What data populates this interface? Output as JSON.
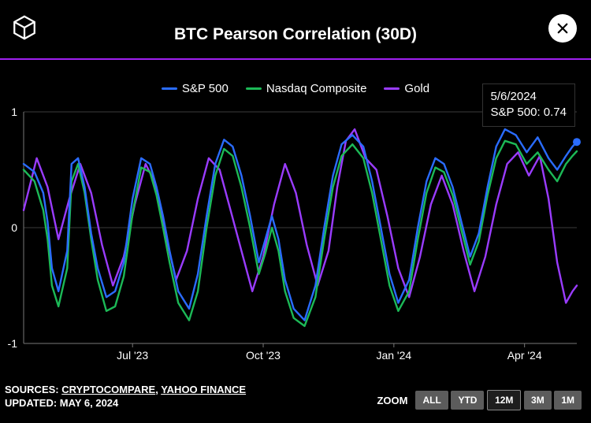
{
  "title": "BTC Pearson Correlation (30D)",
  "colors": {
    "background": "#000000",
    "text": "#ffffff",
    "accent_rule": "#a020f0",
    "grid": "#777777"
  },
  "legend": [
    {
      "label": "S&P 500",
      "color": "#2a6cff"
    },
    {
      "label": "Nasdaq Composite",
      "color": "#1cb957"
    },
    {
      "label": "Gold",
      "color": "#9a3cff"
    }
  ],
  "tooltip": {
    "date": "5/6/2024",
    "series_label": "S&P 500",
    "value_text": "0.74"
  },
  "chart": {
    "type": "line",
    "ylim": [
      -1,
      1
    ],
    "yticks": [
      -1,
      0,
      1
    ],
    "x_domain_t": [
      0,
      12.7
    ],
    "x_ticks": [
      {
        "t": 2.5,
        "label": "Jul '23"
      },
      {
        "t": 5.5,
        "label": "Oct '23"
      },
      {
        "t": 8.5,
        "label": "Jan '24"
      },
      {
        "t": 11.5,
        "label": "Apr '24"
      }
    ],
    "line_width": 2.4,
    "marker": {
      "t": 12.7,
      "v": 0.74,
      "color": "#2a6cff",
      "radius": 5
    },
    "series": {
      "sp500": {
        "color": "#2a6cff",
        "points": [
          [
            0.0,
            0.55
          ],
          [
            0.25,
            0.48
          ],
          [
            0.45,
            0.3
          ],
          [
            0.55,
            0.05
          ],
          [
            0.65,
            -0.35
          ],
          [
            0.8,
            -0.55
          ],
          [
            1.0,
            -0.2
          ],
          [
            1.1,
            0.55
          ],
          [
            1.25,
            0.6
          ],
          [
            1.4,
            0.35
          ],
          [
            1.55,
            -0.05
          ],
          [
            1.7,
            -0.35
          ],
          [
            1.9,
            -0.6
          ],
          [
            2.1,
            -0.55
          ],
          [
            2.3,
            -0.3
          ],
          [
            2.5,
            0.25
          ],
          [
            2.7,
            0.6
          ],
          [
            2.9,
            0.55
          ],
          [
            3.05,
            0.35
          ],
          [
            3.2,
            0.1
          ],
          [
            3.35,
            -0.2
          ],
          [
            3.55,
            -0.55
          ],
          [
            3.8,
            -0.7
          ],
          [
            4.0,
            -0.4
          ],
          [
            4.2,
            0.1
          ],
          [
            4.4,
            0.55
          ],
          [
            4.6,
            0.76
          ],
          [
            4.8,
            0.7
          ],
          [
            5.0,
            0.45
          ],
          [
            5.2,
            0.1
          ],
          [
            5.4,
            -0.3
          ],
          [
            5.55,
            -0.1
          ],
          [
            5.7,
            0.1
          ],
          [
            5.85,
            -0.1
          ],
          [
            6.0,
            -0.45
          ],
          [
            6.2,
            -0.7
          ],
          [
            6.45,
            -0.8
          ],
          [
            6.7,
            -0.5
          ],
          [
            6.9,
            0.0
          ],
          [
            7.1,
            0.45
          ],
          [
            7.3,
            0.72
          ],
          [
            7.55,
            0.8
          ],
          [
            7.8,
            0.7
          ],
          [
            8.0,
            0.4
          ],
          [
            8.2,
            0.0
          ],
          [
            8.4,
            -0.4
          ],
          [
            8.6,
            -0.65
          ],
          [
            8.85,
            -0.45
          ],
          [
            9.05,
            0.0
          ],
          [
            9.25,
            0.4
          ],
          [
            9.45,
            0.6
          ],
          [
            9.65,
            0.55
          ],
          [
            9.85,
            0.35
          ],
          [
            10.05,
            0.05
          ],
          [
            10.25,
            -0.25
          ],
          [
            10.45,
            -0.05
          ],
          [
            10.65,
            0.35
          ],
          [
            10.85,
            0.7
          ],
          [
            11.05,
            0.85
          ],
          [
            11.3,
            0.8
          ],
          [
            11.55,
            0.65
          ],
          [
            11.8,
            0.78
          ],
          [
            12.05,
            0.6
          ],
          [
            12.25,
            0.5
          ],
          [
            12.45,
            0.62
          ],
          [
            12.6,
            0.7
          ],
          [
            12.7,
            0.74
          ]
        ]
      },
      "nasdaq": {
        "color": "#1cb957",
        "points": [
          [
            0.0,
            0.5
          ],
          [
            0.25,
            0.4
          ],
          [
            0.45,
            0.15
          ],
          [
            0.55,
            -0.1
          ],
          [
            0.65,
            -0.5
          ],
          [
            0.8,
            -0.68
          ],
          [
            1.0,
            -0.35
          ],
          [
            1.1,
            0.4
          ],
          [
            1.25,
            0.55
          ],
          [
            1.4,
            0.3
          ],
          [
            1.55,
            -0.1
          ],
          [
            1.7,
            -0.45
          ],
          [
            1.9,
            -0.72
          ],
          [
            2.1,
            -0.68
          ],
          [
            2.3,
            -0.42
          ],
          [
            2.5,
            0.12
          ],
          [
            2.7,
            0.52
          ],
          [
            2.9,
            0.48
          ],
          [
            3.05,
            0.28
          ],
          [
            3.2,
            0.0
          ],
          [
            3.35,
            -0.3
          ],
          [
            3.55,
            -0.65
          ],
          [
            3.8,
            -0.8
          ],
          [
            4.0,
            -0.55
          ],
          [
            4.2,
            0.0
          ],
          [
            4.4,
            0.45
          ],
          [
            4.6,
            0.68
          ],
          [
            4.8,
            0.62
          ],
          [
            5.0,
            0.35
          ],
          [
            5.2,
            0.0
          ],
          [
            5.4,
            -0.4
          ],
          [
            5.55,
            -0.22
          ],
          [
            5.7,
            0.0
          ],
          [
            5.85,
            -0.2
          ],
          [
            6.0,
            -0.55
          ],
          [
            6.2,
            -0.78
          ],
          [
            6.45,
            -0.85
          ],
          [
            6.7,
            -0.6
          ],
          [
            6.9,
            -0.1
          ],
          [
            7.1,
            0.35
          ],
          [
            7.3,
            0.62
          ],
          [
            7.55,
            0.72
          ],
          [
            7.8,
            0.6
          ],
          [
            8.0,
            0.3
          ],
          [
            8.2,
            -0.1
          ],
          [
            8.4,
            -0.5
          ],
          [
            8.6,
            -0.72
          ],
          [
            8.85,
            -0.55
          ],
          [
            9.05,
            -0.1
          ],
          [
            9.25,
            0.3
          ],
          [
            9.45,
            0.52
          ],
          [
            9.65,
            0.48
          ],
          [
            9.85,
            0.28
          ],
          [
            10.05,
            -0.02
          ],
          [
            10.25,
            -0.32
          ],
          [
            10.45,
            -0.12
          ],
          [
            10.65,
            0.28
          ],
          [
            10.85,
            0.6
          ],
          [
            11.05,
            0.75
          ],
          [
            11.3,
            0.72
          ],
          [
            11.55,
            0.55
          ],
          [
            11.8,
            0.65
          ],
          [
            12.05,
            0.5
          ],
          [
            12.25,
            0.4
          ],
          [
            12.45,
            0.55
          ],
          [
            12.6,
            0.62
          ],
          [
            12.7,
            0.66
          ]
        ]
      },
      "gold": {
        "color": "#9a3cff",
        "points": [
          [
            0.0,
            0.15
          ],
          [
            0.3,
            0.6
          ],
          [
            0.55,
            0.35
          ],
          [
            0.8,
            -0.1
          ],
          [
            1.05,
            0.25
          ],
          [
            1.3,
            0.55
          ],
          [
            1.55,
            0.3
          ],
          [
            1.8,
            -0.15
          ],
          [
            2.05,
            -0.5
          ],
          [
            2.3,
            -0.25
          ],
          [
            2.55,
            0.2
          ],
          [
            2.8,
            0.55
          ],
          [
            3.0,
            0.4
          ],
          [
            3.25,
            -0.05
          ],
          [
            3.5,
            -0.45
          ],
          [
            3.75,
            -0.2
          ],
          [
            4.0,
            0.25
          ],
          [
            4.25,
            0.6
          ],
          [
            4.5,
            0.5
          ],
          [
            4.75,
            0.15
          ],
          [
            5.0,
            -0.2
          ],
          [
            5.25,
            -0.55
          ],
          [
            5.5,
            -0.25
          ],
          [
            5.75,
            0.2
          ],
          [
            6.0,
            0.55
          ],
          [
            6.25,
            0.3
          ],
          [
            6.5,
            -0.15
          ],
          [
            6.75,
            -0.5
          ],
          [
            7.0,
            -0.2
          ],
          [
            7.2,
            0.35
          ],
          [
            7.4,
            0.75
          ],
          [
            7.6,
            0.85
          ],
          [
            7.85,
            0.6
          ],
          [
            8.1,
            0.5
          ],
          [
            8.35,
            0.1
          ],
          [
            8.6,
            -0.35
          ],
          [
            8.85,
            -0.6
          ],
          [
            9.1,
            -0.25
          ],
          [
            9.35,
            0.2
          ],
          [
            9.6,
            0.45
          ],
          [
            9.85,
            0.2
          ],
          [
            10.1,
            -0.2
          ],
          [
            10.35,
            -0.55
          ],
          [
            10.6,
            -0.25
          ],
          [
            10.85,
            0.2
          ],
          [
            11.1,
            0.55
          ],
          [
            11.35,
            0.65
          ],
          [
            11.6,
            0.45
          ],
          [
            11.85,
            0.62
          ],
          [
            12.05,
            0.25
          ],
          [
            12.25,
            -0.3
          ],
          [
            12.45,
            -0.65
          ],
          [
            12.6,
            -0.55
          ],
          [
            12.7,
            -0.5
          ]
        ]
      }
    }
  },
  "footer": {
    "sources_label": "SOURCES:",
    "source1": "CRYPTOCOMPARE",
    "sep": ", ",
    "source2": "YAHOO FINANCE",
    "updated": "UPDATED: MAY 6, 2024"
  },
  "zoom": {
    "label": "ZOOM",
    "buttons": [
      {
        "label": "ALL",
        "active": false
      },
      {
        "label": "YTD",
        "active": false
      },
      {
        "label": "12M",
        "active": true
      },
      {
        "label": "3M",
        "active": false
      },
      {
        "label": "1M",
        "active": false
      }
    ]
  }
}
